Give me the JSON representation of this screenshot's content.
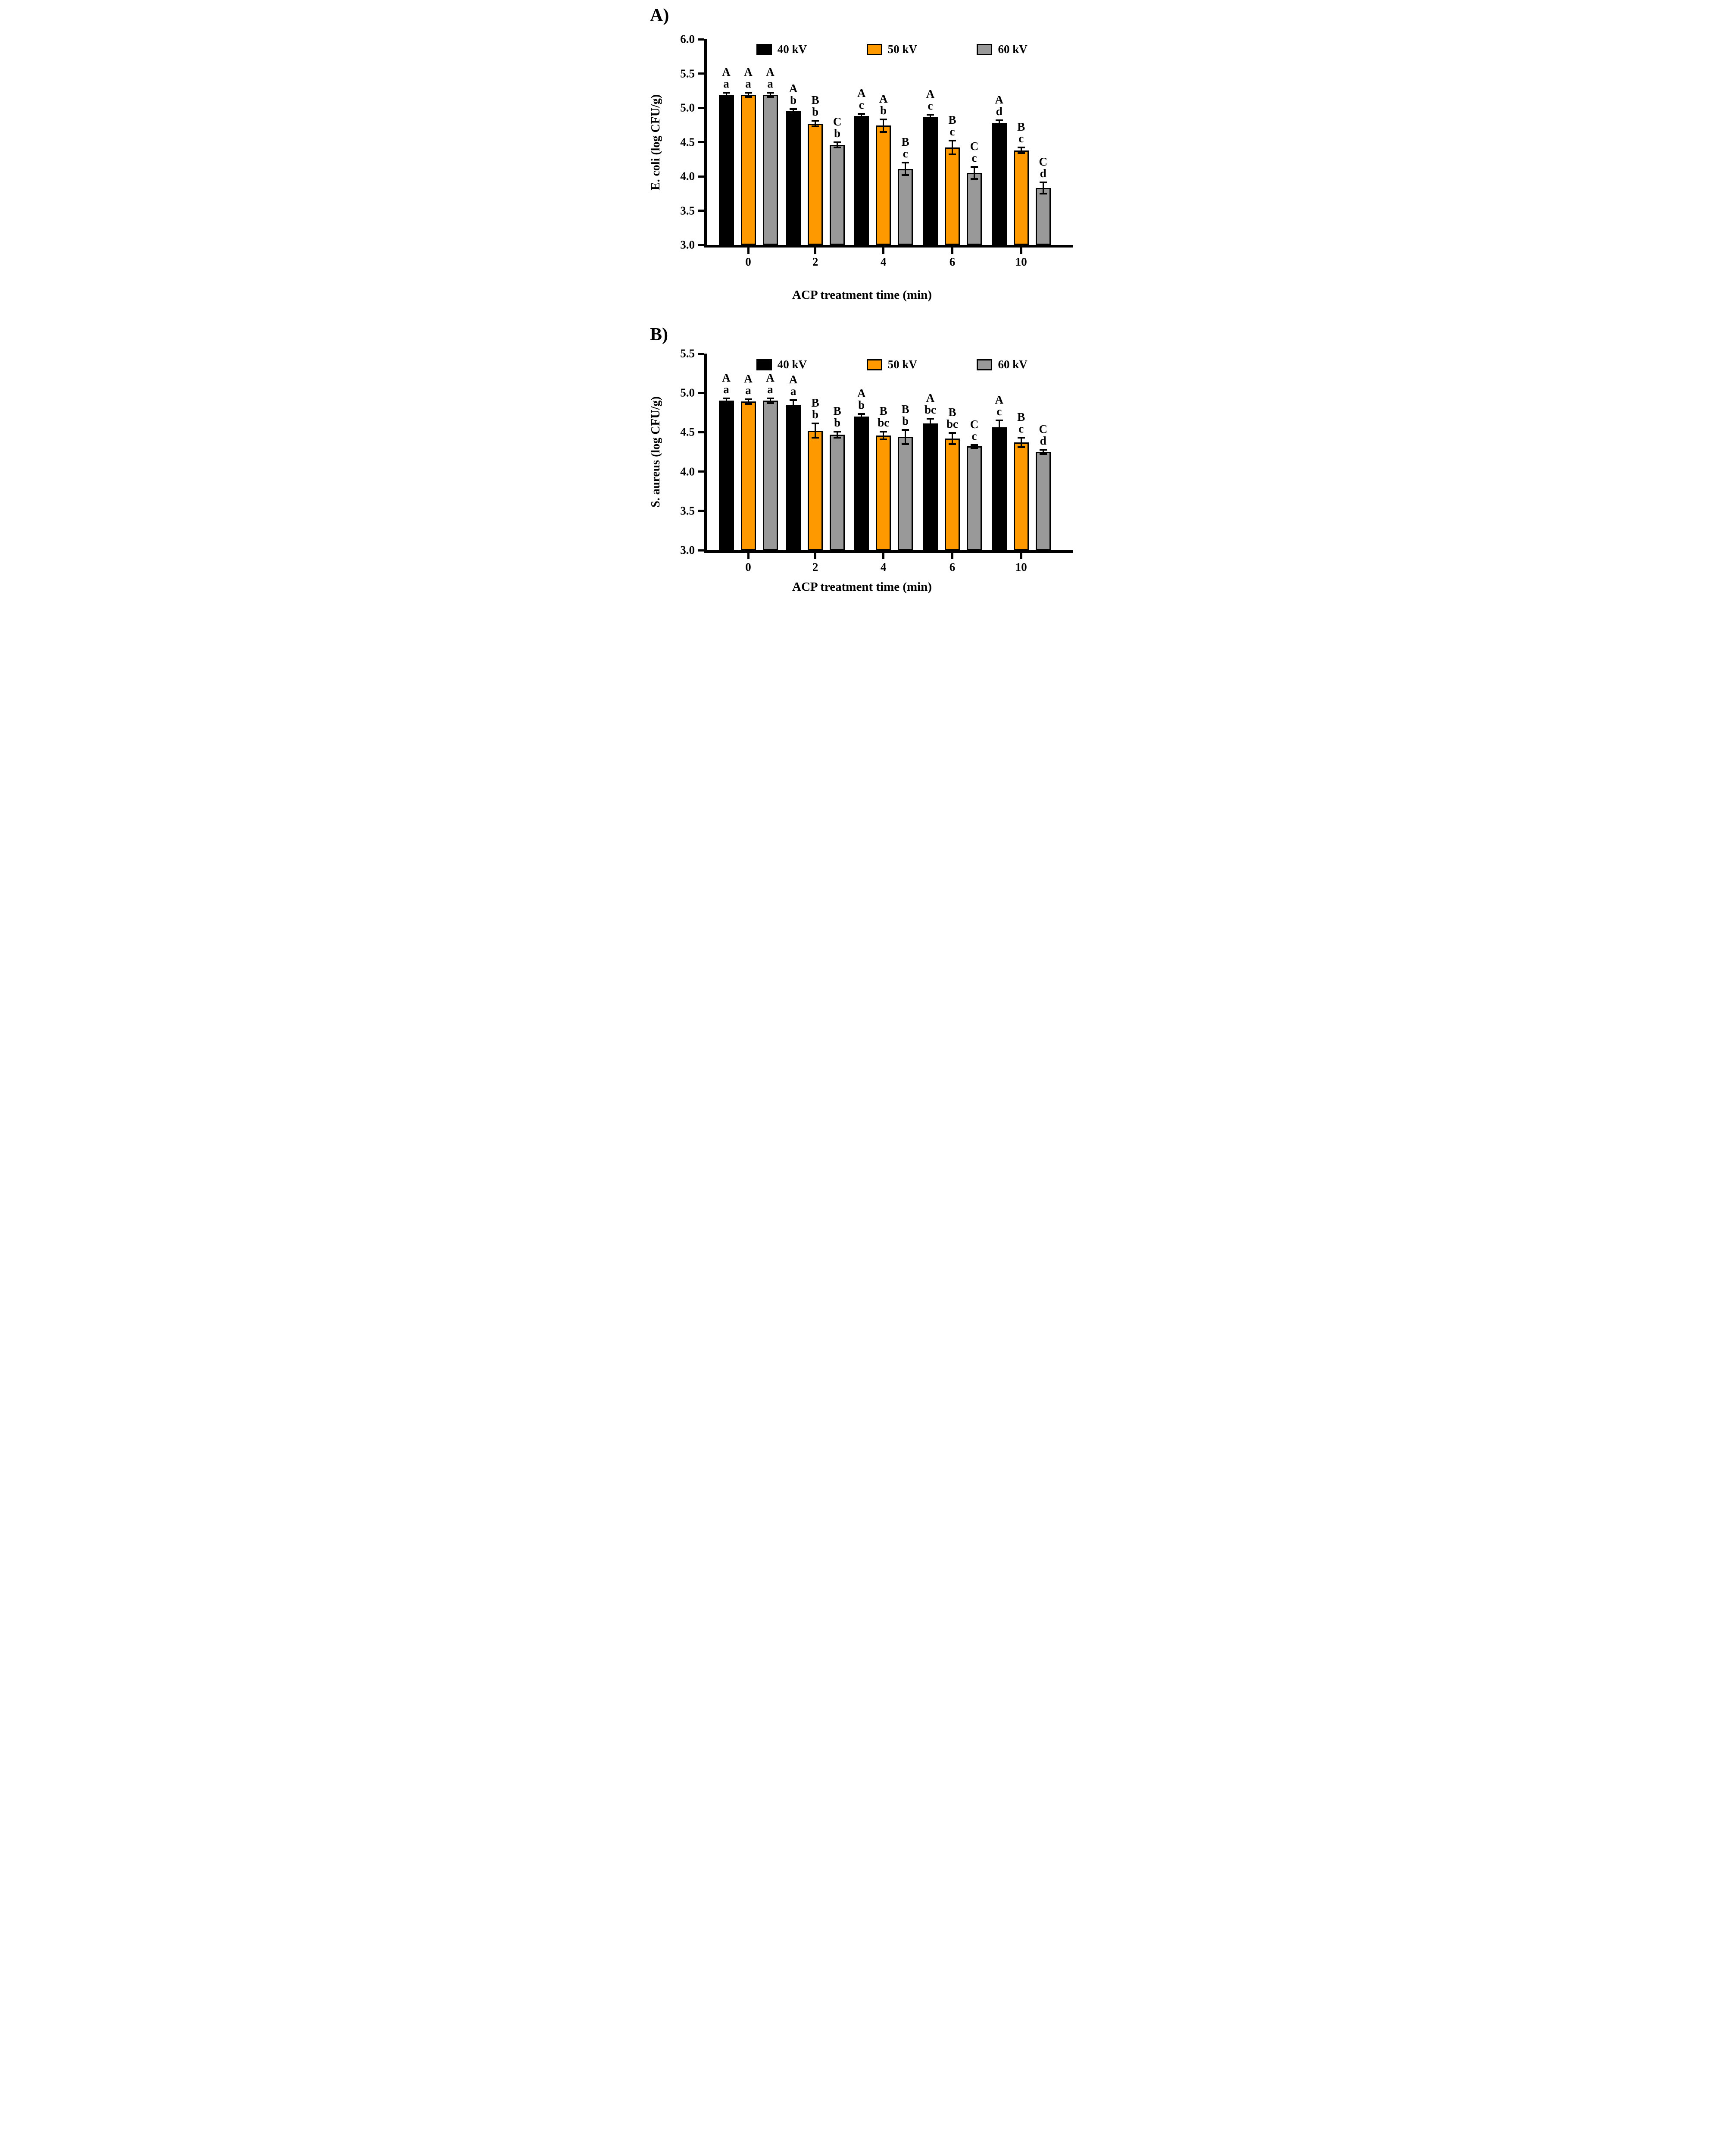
{
  "page": {
    "panel_a_label": "A)",
    "panel_b_label": "B)",
    "background": "#ffffff"
  },
  "colors": {
    "bar_40kv": "#000000",
    "bar_50kv": "#FF9900",
    "bar_60kv": "#999999",
    "axis": "#000000"
  },
  "legend": {
    "position": "top-inside",
    "items": [
      {
        "label": "40 kV",
        "color": "#000000"
      },
      {
        "label": "50 kV",
        "color": "#FF9900"
      },
      {
        "label": "60 kV",
        "color": "#999999"
      }
    ]
  },
  "xlabel": "ACP treatment time (min)",
  "chart_data": [
    {
      "type": "bar",
      "panel": "A",
      "ylabel": "E. coli (log CFU/g)",
      "xlabel": "ACP treatment time (min)",
      "categories": [
        "0",
        "2",
        "4",
        "6",
        "10"
      ],
      "ylim": [
        3.0,
        6.0
      ],
      "yticks": [
        "6.0",
        "5.5",
        "5.0",
        "4.5",
        "4.0",
        "3.5",
        "3.0"
      ],
      "grid": false,
      "legend_position": "top-inside",
      "series": [
        {
          "name": "40 kV",
          "color": "#000000",
          "values": [
            5.19,
            4.95,
            4.88,
            4.86,
            4.78
          ],
          "errors": [
            0.03,
            0.03,
            0.03,
            0.04,
            0.04
          ],
          "letters": [
            "A a",
            "A b",
            "A c",
            "A c",
            "A d"
          ]
        },
        {
          "name": "50 kV",
          "color": "#FF9900",
          "values": [
            5.19,
            4.77,
            4.74,
            4.42,
            4.38
          ],
          "errors": [
            0.03,
            0.04,
            0.09,
            0.1,
            0.04
          ],
          "letters": [
            "A a",
            "B b",
            "A b",
            "B c",
            "B c"
          ]
        },
        {
          "name": "60 kV",
          "color": "#999999",
          "values": [
            5.19,
            4.46,
            4.11,
            4.05,
            3.83
          ],
          "errors": [
            0.03,
            0.04,
            0.09,
            0.09,
            0.08
          ],
          "letters": [
            "A a",
            "C b",
            "B c",
            "C c",
            "C d"
          ]
        }
      ]
    },
    {
      "type": "bar",
      "panel": "B",
      "ylabel": "S. aureus (log CFU/g)",
      "xlabel": "ACP treatment time (min)",
      "categories": [
        "0",
        "2",
        "4",
        "6",
        "10"
      ],
      "ylim": [
        3.0,
        5.5
      ],
      "yticks": [
        "5.5",
        "5.0",
        "4.5",
        "4.0",
        "3.5",
        "3.0"
      ],
      "grid": false,
      "legend_position": "top-inside",
      "series": [
        {
          "name": "40 kV",
          "color": "#000000",
          "values": [
            4.9,
            4.85,
            4.7,
            4.61,
            4.56
          ],
          "errors": [
            0.03,
            0.06,
            0.03,
            0.06,
            0.09
          ],
          "letters": [
            "A a",
            "A a",
            "A b",
            "A bc",
            "A c"
          ]
        },
        {
          "name": "50 kV",
          "color": "#FF9900",
          "values": [
            4.89,
            4.52,
            4.46,
            4.42,
            4.37
          ],
          "errors": [
            0.03,
            0.09,
            0.05,
            0.07,
            0.06
          ],
          "letters": [
            "A a",
            "B b",
            "B bc",
            "B bc",
            "B c"
          ]
        },
        {
          "name": "60 kV",
          "color": "#999999",
          "values": [
            4.9,
            4.47,
            4.44,
            4.32,
            4.25
          ],
          "errors": [
            0.03,
            0.04,
            0.09,
            0.02,
            0.03
          ],
          "letters": [
            "A a",
            "B b",
            "B b",
            "C c",
            "C d"
          ]
        }
      ]
    }
  ]
}
